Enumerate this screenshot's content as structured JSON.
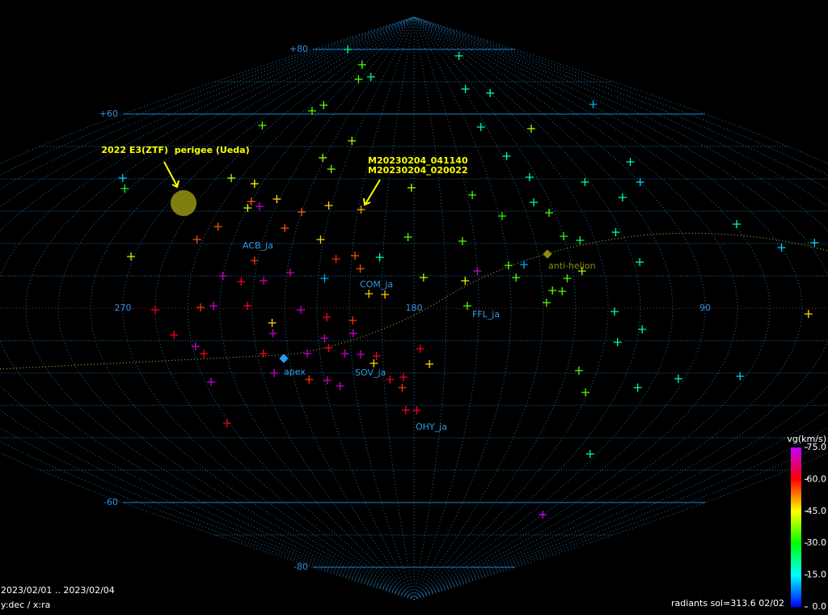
{
  "chart_data": {
    "type": "scatter",
    "x": [
      298,
      113,
      243,
      232,
      222,
      138,
      121,
      58,
      241,
      245,
      265,
      143,
      116,
      211,
      138,
      221,
      85,
      215,
      254,
      298,
      292,
      133,
      112,
      90,
      243,
      181,
      158,
      102,
      231,
      240,
      236,
      240,
      211,
      199,
      220,
      136,
      149,
      132,
      247,
      252,
      182,
      224,
      211,
      164,
      130,
      112,
      125,
      48,
      69,
      60,
      271,
      231,
      219,
      205,
      197,
      191,
      199,
      240,
      234,
      227,
      208,
      177,
      164,
      160,
      150,
      145,
      148,
      132,
      127,
      108,
      137,
      134,
      194,
      189,
      260,
      246,
      242,
      231.5,
      215,
      207,
      163.5,
      139,
      118,
      58,
      224,
      224,
      199,
      199,
      255,
      228,
      208,
      207,
      178,
      249,
      247,
      109,
      116,
      214,
      202,
      197,
      193,
      192,
      175,
      126,
      226,
      248,
      215,
      209,
      205,
      188,
      183.5,
      184,
      92,
      72,
      104,
      121,
      183,
      179,
      251,
      103,
      90
    ],
    "values": [
      80,
      78,
      75.25,
      70.75,
      71.5,
      67.75,
      66.5,
      63,
      62.75,
      61,
      56.5,
      56,
      55.5,
      51.75,
      47,
      46.5,
      45.25,
      43,
      40.25,
      40.25,
      37,
      40.5,
      39,
      39,
      38.5,
      37.25,
      35,
      34.25,
      33.75,
      33,
      31.5,
      31,
      31.75,
      30.5,
      29.75,
      32.75,
      28.5,
      29.5,
      25.25,
      21.25,
      22,
      24.75,
      21.25,
      20.75,
      22.25,
      23.5,
      21,
      20.25,
      26,
      18.75,
      16,
      14.75,
      11,
      15.25,
      12.25,
      15.75,
      16.25,
      10,
      8.25,
      8.5,
      9.25,
      9.5,
      8.5,
      11.5,
      13.25,
      13.5,
      9.5,
      9.25,
      11.5,
      14.25,
      5.5,
      5.25,
      4.5,
      4.25,
      -0.5,
      0.25,
      0.75,
      0.75,
      -0.5,
      -2.75,
      0.75,
      1.75,
      -1,
      -1.75,
      -4.5,
      -7.75,
      -3.75,
      -7.75,
      -8.25,
      -14,
      -9.25,
      -12.25,
      -12.5,
      -11.75,
      -14,
      -6.5,
      -10.5,
      -14,
      -14,
      -14.25,
      -17,
      -14.75,
      -17.25,
      -19.25,
      -20,
      -22.75,
      -22,
      -22.25,
      -24,
      -22,
      -21.25,
      -24.5,
      -21.75,
      -21,
      -24.5,
      -26,
      -31.5,
      -31.5,
      -35.5,
      -45,
      -63.75
    ],
    "vg": [
      20,
      20,
      35,
      35,
      22,
      20,
      18,
      10,
      35,
      35,
      35,
      20,
      40,
      40,
      20,
      40,
      18,
      38,
      40,
      12,
      28,
      20,
      20,
      12,
      45,
      40,
      33,
      20,
      47,
      55,
      72,
      42,
      47,
      50,
      55,
      22,
      32,
      35,
      55,
      55,
      35,
      55,
      47,
      35,
      32,
      20,
      25,
      12,
      20,
      12,
      42,
      57,
      70,
      58,
      55,
      20,
      55,
      72,
      62,
      70,
      10,
      40,
      42,
      72,
      35,
      10,
      35,
      35,
      40,
      20,
      35,
      35,
      48,
      48,
      62,
      57,
      72,
      62,
      72,
      62,
      35,
      35,
      20,
      47,
      47,
      72,
      57,
      72,
      62,
      62,
      72,
      62,
      62,
      72,
      62,
      20,
      20,
      72,
      72,
      72,
      47,
      62,
      47,
      35,
      72,
      72,
      57,
      72,
      72,
      62,
      62,
      57,
      20,
      12,
      20,
      35,
      62,
      62,
      62,
      20,
      77
    ],
    "xlim": [
      360,
      0
    ],
    "ylim": [
      -90,
      90
    ],
    "xticks": [
      270,
      180,
      90
    ],
    "yticks": [
      {
        "value": 80,
        "label": "+80"
      },
      {
        "value": 60,
        "label": "+60"
      },
      -60,
      -80
    ],
    "grid": true,
    "grid_step": 10,
    "colorbar": {
      "label": "vg(km/s)",
      "lim": [
        0,
        75
      ],
      "ticks": [
        {
          "value": 75,
          "label": "75.0"
        },
        {
          "value": 60,
          "label": "60.0"
        },
        {
          "value": 45,
          "label": "45.0"
        },
        {
          "value": 30,
          "label": "30.0"
        },
        {
          "value": 15,
          "label": "15.0"
        },
        {
          "value": 0,
          "label": "0.0"
        }
      ]
    },
    "annotations": [
      "2022 E3(ZTF)  perigee (Ueda)",
      "M20230204_041140",
      "M20230204_020022"
    ],
    "labels": [
      "ACB_ja",
      "COM_ja",
      "FFL_ja",
      "SOV_ja",
      "OHY_ja",
      "apex",
      "anti-helion"
    ],
    "notes": [
      "2023/02/01 .. 2023/02/04",
      "y:dec / x:ra",
      "radiants sol=313.6 02/02"
    ]
  }
}
